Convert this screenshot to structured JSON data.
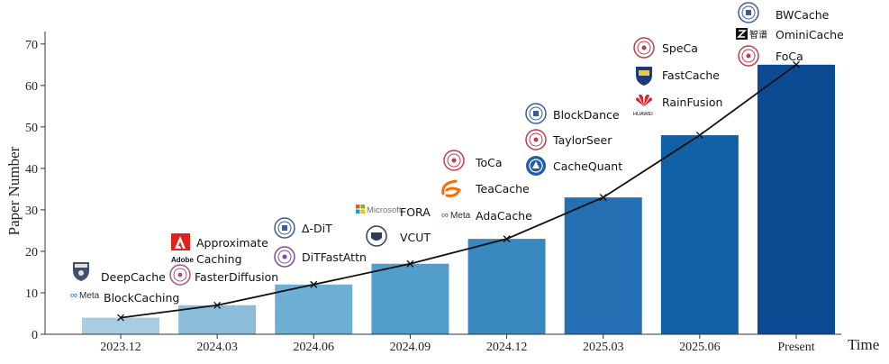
{
  "chart_data": {
    "type": "bar",
    "categories": [
      "2023.12",
      "2024.03",
      "2024.06",
      "2024.09",
      "2024.12",
      "2025.03",
      "2025.06",
      "Present"
    ],
    "values": [
      4,
      7,
      12,
      17,
      23,
      33,
      48,
      65
    ],
    "line_overlay": [
      4,
      7,
      12,
      17,
      23,
      33,
      48,
      65
    ],
    "ylabel": "Paper Number",
    "xlabel": "Time",
    "ylim": [
      0,
      73
    ],
    "yticks": [
      0,
      10,
      20,
      30,
      40,
      50,
      60,
      70
    ],
    "bar_colors": [
      "#a7cde4",
      "#8bbddb",
      "#6daed5",
      "#519dcb",
      "#3a88c0",
      "#2470b2",
      "#1260a6",
      "#0b4b92"
    ],
    "grid": false,
    "legend": "none"
  },
  "methods": [
    {
      "label": "DeepCache",
      "logo": "university-crest-icon",
      "color": "#3f4f7a"
    },
    {
      "label": "BlockCaching",
      "logo": "meta-logo-icon",
      "color": "#0a66e0"
    },
    {
      "label": "Approximate",
      "logo": "adobe-logo-icon",
      "color": "#e2211c"
    },
    {
      "label": "Caching",
      "logo": "none",
      "color": "#111111"
    },
    {
      "label": "FasterDiffusion",
      "logo": "university-seal-icon",
      "color": "#b0527a"
    },
    {
      "label": "Δ-DiT",
      "logo": "university-seal-icon",
      "color": "#3c5aa0"
    },
    {
      "label": "DiTFastAttn",
      "logo": "university-seal-icon",
      "color": "#7a4aa0"
    },
    {
      "label": "FORA",
      "logo": "microsoft-logo-icon",
      "color": "#737373"
    },
    {
      "label": "VCUT",
      "logo": "university-crest-icon",
      "color": "#2f3d5a"
    },
    {
      "label": "ToCa",
      "logo": "university-seal-icon",
      "color": "#c23a4a"
    },
    {
      "label": "TeaCache",
      "logo": "alibaba-logo-icon",
      "color": "#ff6a00"
    },
    {
      "label": "AdaCache",
      "logo": "meta-logo-icon",
      "color": "#0a66e0"
    },
    {
      "label": "BlockDance",
      "logo": "university-seal-icon",
      "color": "#3c5aa0"
    },
    {
      "label": "TaylorSeer",
      "logo": "university-seal-icon",
      "color": "#c23a4a"
    },
    {
      "label": "CacheQuant",
      "logo": "academy-seal-icon",
      "color": "#1f5fa8"
    },
    {
      "label": "SpeCa",
      "logo": "university-seal-icon",
      "color": "#c23a4a"
    },
    {
      "label": "FastCache",
      "logo": "university-crest-icon",
      "color": "#1b3a7a"
    },
    {
      "label": "RainFusion",
      "logo": "huawei-logo-icon",
      "color": "#e0202a"
    },
    {
      "label": "BWCache",
      "logo": "university-seal-icon",
      "color": "#3c5aa0"
    },
    {
      "label": "OminiCache",
      "logo": "zhipu-logo-icon",
      "color": "#111111"
    },
    {
      "label": "FoCa",
      "logo": "university-seal-icon",
      "color": "#c23a4a"
    }
  ],
  "brand_text": {
    "adobe": "Adobe",
    "meta": "Meta",
    "microsoft": "Microsoft",
    "huawei": "HUAWEI",
    "zhipu": "智谱"
  }
}
